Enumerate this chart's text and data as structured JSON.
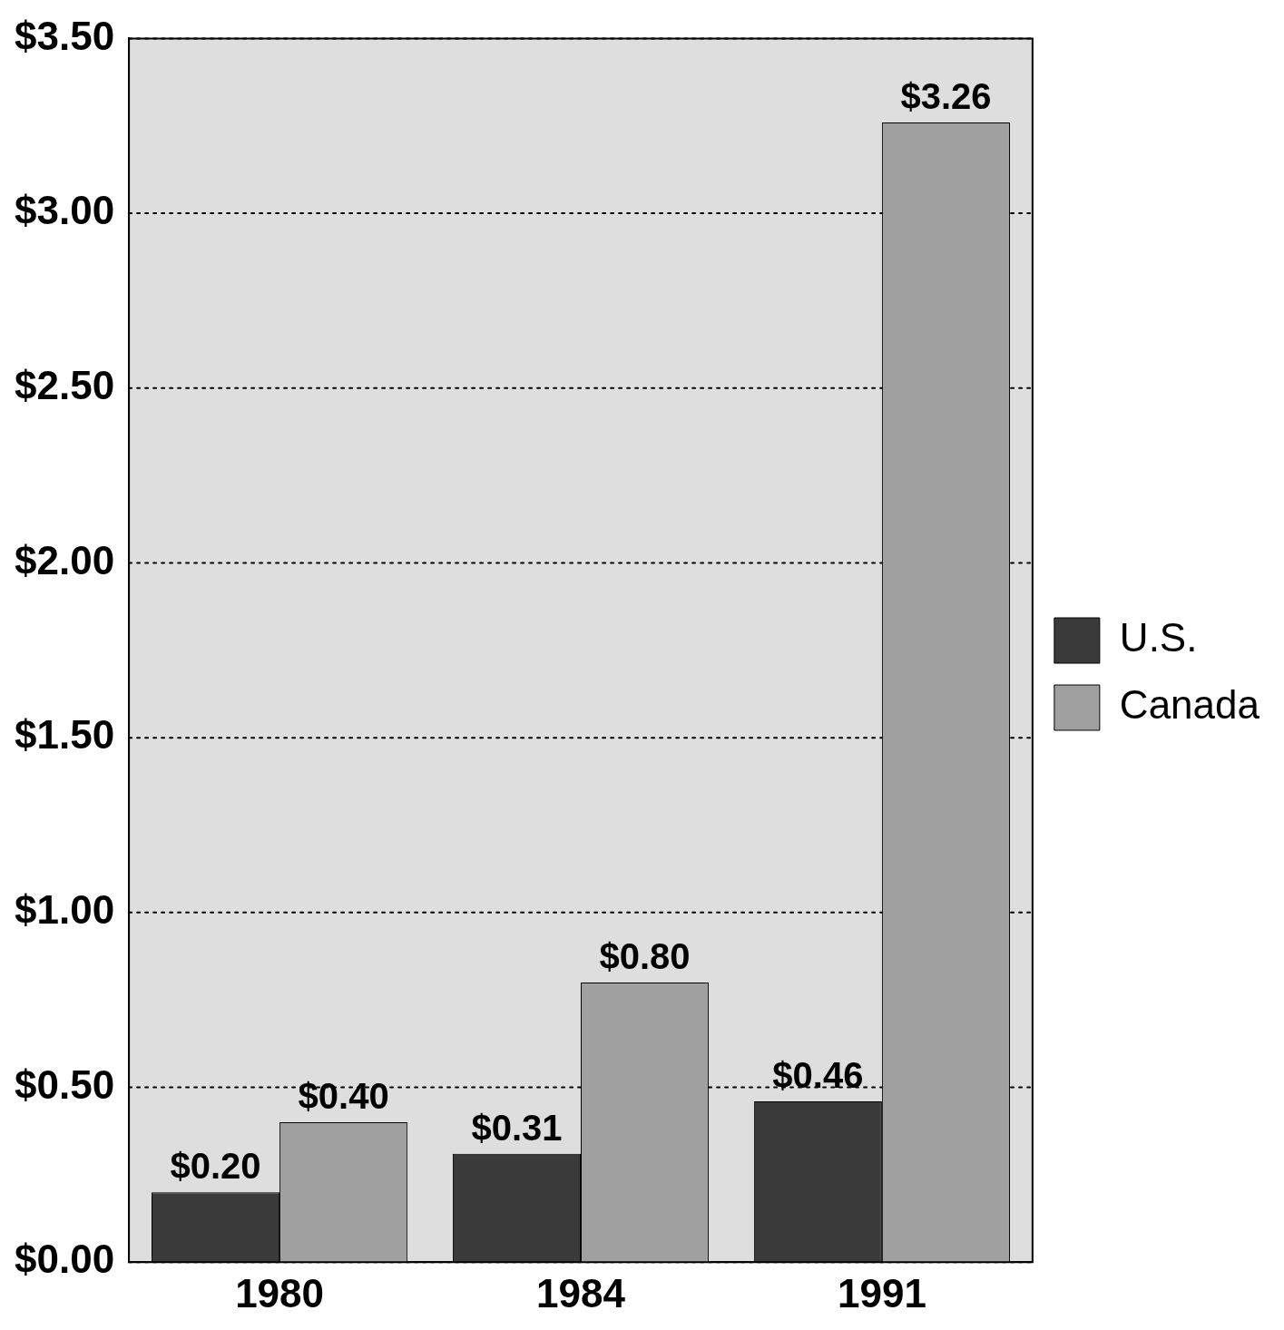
{
  "chart_data": {
    "type": "bar",
    "categories": [
      "1980",
      "1984",
      "1991"
    ],
    "series": [
      {
        "name": "U.S.",
        "color": "#3a3a3a",
        "values": [
          0.2,
          0.31,
          0.46
        ],
        "value_labels": [
          "$0.20",
          "$0.31",
          "$0.46"
        ]
      },
      {
        "name": "Canada",
        "color": "#a0a0a0",
        "values": [
          0.4,
          0.8,
          3.26
        ],
        "value_labels": [
          "$0.40",
          "$0.80",
          "$3.26"
        ]
      }
    ],
    "ylim": [
      0,
      3.5
    ],
    "yticks": [
      {
        "value": 0,
        "label": "$0.00"
      },
      {
        "value": 0.5,
        "label": "$0.50"
      },
      {
        "value": 1,
        "label": "$1.00"
      },
      {
        "value": 1.5,
        "label": "$1.50"
      },
      {
        "value": 2,
        "label": "$2.00"
      },
      {
        "value": 2.5,
        "label": "$2.50"
      },
      {
        "value": 3,
        "label": "$3.00"
      },
      {
        "value": 3.5,
        "label": "$3.50"
      }
    ],
    "grid": "y",
    "line_style": "dotted",
    "legend": "right"
  }
}
